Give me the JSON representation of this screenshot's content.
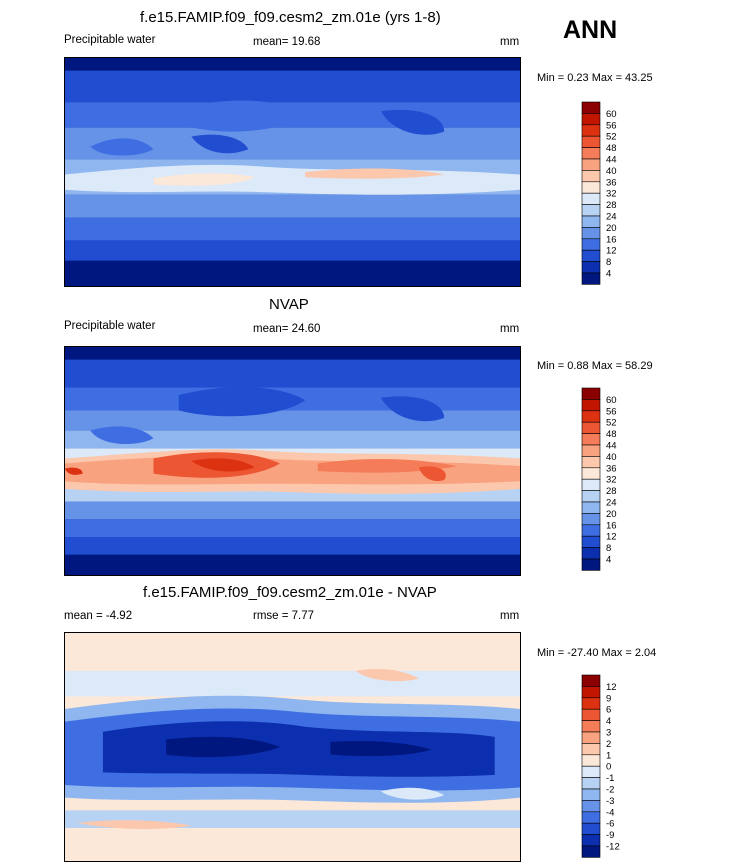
{
  "header": {
    "season": "ANN"
  },
  "panels": [
    {
      "id": "model",
      "title": "f.e15.FAMIP.f09_f09.cesm2_zm.01e (yrs 1-8)",
      "left_label": "Precipitable water",
      "mean_text": "mean=  19.68",
      "units": "mm",
      "minmax_text": "Min =   0.23 Max =  43.25",
      "colorbar_labels": [
        "60",
        "56",
        "52",
        "48",
        "44",
        "40",
        "36",
        "32",
        "28",
        "24",
        "20",
        "16",
        "12",
        "8",
        "4"
      ],
      "colors": [
        "#8b0000",
        "#c11500",
        "#dc3212",
        "#ec5632",
        "#f57c58",
        "#f9a27f",
        "#fcc8ad",
        "#fce8d8",
        "#dbe9f9",
        "#b8d2f4",
        "#8fb6ee",
        "#6693e8",
        "#3e6ee2",
        "#214dd0",
        "#0c2fb0",
        "#001780"
      ]
    },
    {
      "id": "obs",
      "title": "NVAP",
      "left_label": "Precipitable water",
      "mean_text": "mean=  24.60",
      "units": "mm",
      "minmax_text": "Min =   0.88 Max =  58.29",
      "colorbar_labels": [
        "60",
        "56",
        "52",
        "48",
        "44",
        "40",
        "36",
        "32",
        "28",
        "24",
        "20",
        "16",
        "12",
        "8",
        "4"
      ],
      "colors": [
        "#8b0000",
        "#c11500",
        "#dc3212",
        "#ec5632",
        "#f57c58",
        "#f9a27f",
        "#fcc8ad",
        "#fce8d8",
        "#dbe9f9",
        "#b8d2f4",
        "#8fb6ee",
        "#6693e8",
        "#3e6ee2",
        "#214dd0",
        "#0c2fb0",
        "#001780"
      ]
    },
    {
      "id": "diff",
      "title": "f.e15.FAMIP.f09_f09.cesm2_zm.01e - NVAP",
      "left_label": "mean =  -4.92",
      "mean_text": "rmse =   7.77",
      "units": "mm",
      "minmax_text": "Min = -27.40 Max =   2.04",
      "colorbar_labels": [
        "12",
        "9",
        "6",
        "4",
        "3",
        "2",
        "1",
        "0",
        "-1",
        "-2",
        "-3",
        "-4",
        "-6",
        "-9",
        "-12"
      ],
      "colors": [
        "#8b0000",
        "#c11500",
        "#dc3212",
        "#ec5632",
        "#f57c58",
        "#f9a27f",
        "#fcc8ad",
        "#fce8d8",
        "#dbe9f9",
        "#b8d2f4",
        "#8fb6ee",
        "#6693e8",
        "#3e6ee2",
        "#214dd0",
        "#0c2fb0",
        "#001780"
      ]
    }
  ]
}
